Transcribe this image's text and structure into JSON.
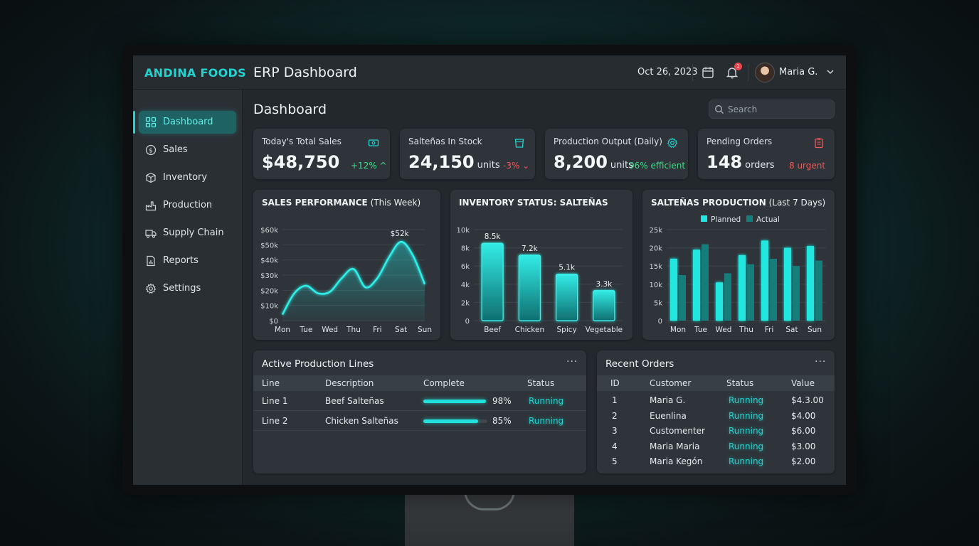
{
  "brand": "ANDINA FOODS",
  "app_title": "ERP Dashboard",
  "topbar": {
    "date": "Oct 26, 2023",
    "notification_count": "1",
    "user_name": "Maria G."
  },
  "sidebar": {
    "items": [
      {
        "label": "Dashboard",
        "icon": "grid-icon",
        "active": true
      },
      {
        "label": "Sales",
        "icon": "dollar-icon"
      },
      {
        "label": "Inventory",
        "icon": "box-icon"
      },
      {
        "label": "Production",
        "icon": "factory-icon"
      },
      {
        "label": "Supply Chain",
        "icon": "truck-icon"
      },
      {
        "label": "Reports",
        "icon": "report-icon"
      },
      {
        "label": "Settings",
        "icon": "gear-icon"
      }
    ]
  },
  "page_title": "Dashboard",
  "search": {
    "placeholder": "Search"
  },
  "kpis": [
    {
      "label": "Today's Total Sales",
      "value": "$48,750",
      "unit": "",
      "change": "+12% ^",
      "icon": "cash-icon"
    },
    {
      "label": "Salteñas In Stock",
      "value": "24,150",
      "unit": "units",
      "change": "-3% ⌄",
      "icon": "stock-icon"
    },
    {
      "label": "Production Output (Daily)",
      "value": "8,200",
      "unit": "units",
      "change": "96% efficient",
      "icon": "gear-icon"
    },
    {
      "label": "Pending Orders",
      "value": "148",
      "unit": "orders",
      "change": "8 urgent",
      "icon": "clipboard-icon"
    }
  ],
  "colors": {
    "accent": "#22d3d0",
    "positive": "#3ee08a",
    "negative": "#ef5a5a",
    "planned": "#22e6e0",
    "actual": "#157e7c"
  },
  "chart_data": [
    {
      "type": "area",
      "title_bold": "SALES PERFORMANCE",
      "title_rest": " (This Week)",
      "categories": [
        "Mon",
        "Tue",
        "Wed",
        "Thu",
        "Fri",
        "Sat",
        "Sun"
      ],
      "x": [
        0,
        0.5,
        1,
        1.5,
        2,
        2.5,
        3,
        3.5,
        4,
        4.5,
        5,
        5.5,
        6
      ],
      "values": [
        4,
        18,
        23,
        18,
        19,
        28,
        34,
        22,
        28,
        42,
        52,
        43,
        24
      ],
      "peak_label": "$52k",
      "ylim": [
        0,
        60
      ],
      "yticks": [
        "$0",
        "$10k",
        "$20k",
        "$30k",
        "$40k",
        "$50k",
        "$60k"
      ],
      "grid": true
    },
    {
      "type": "bar",
      "title_bold": "INVENTORY STATUS: SALTEÑAS",
      "categories": [
        "Beef",
        "Chicken",
        "Spicy",
        "Vegetable"
      ],
      "values": [
        8.5,
        7.2,
        5.1,
        3.3
      ],
      "data_labels": [
        "8.5k",
        "7.2k",
        "5.1k",
        "3.3k"
      ],
      "ylim": [
        0,
        10
      ],
      "yticks": [
        "0",
        "2k",
        "4k",
        "6k",
        "8k",
        "10k"
      ],
      "grid": true
    },
    {
      "type": "bar",
      "title_bold": "SALTEÑAS PRODUCTION",
      "title_rest": " (Last 7 Days)",
      "categories": [
        "Mon",
        "Tue",
        "Wed",
        "Thu",
        "Fri",
        "Sat",
        "Sun"
      ],
      "series": [
        {
          "name": "Planned",
          "values": [
            17,
            19.5,
            10.5,
            18,
            22,
            20,
            20.5
          ]
        },
        {
          "name": "Actual",
          "values": [
            12.5,
            21,
            13,
            15.5,
            17,
            15,
            16.5
          ]
        }
      ],
      "ylim": [
        0,
        25
      ],
      "yticks": [
        "0",
        "5k",
        "10k",
        "15k",
        "20k",
        "25k"
      ],
      "legend": "top-center",
      "grid": true
    }
  ],
  "production_lines": {
    "title": "Active Production Lines",
    "menu": "···",
    "columns": [
      "Line",
      "Description",
      "Complete",
      "Status"
    ],
    "rows": [
      {
        "line": "Line 1",
        "description": "Beef Salteñas",
        "complete": 98,
        "complete_label": "98%",
        "status": "Running"
      },
      {
        "line": "Line 2",
        "description": "Chicken Salteñas",
        "complete": 85,
        "complete_label": "85%",
        "status": "Running"
      }
    ]
  },
  "recent_orders": {
    "title": "Recent Orders",
    "menu": "···",
    "columns": [
      "ID",
      "Customer",
      "Status",
      "Value"
    ],
    "rows": [
      {
        "id": "1",
        "customer": "Maria G.",
        "status": "Running",
        "value": "$4.3.00"
      },
      {
        "id": "2",
        "customer": "Euenlina",
        "status": "Running",
        "value": "$4.00"
      },
      {
        "id": "3",
        "customer": "Customenter",
        "status": "Running",
        "value": "$6.00"
      },
      {
        "id": "4",
        "customer": "Maria Maria",
        "status": "Running",
        "value": "$3.00"
      },
      {
        "id": "5",
        "customer": "Maria Kegón",
        "status": "Running",
        "value": "$2.00"
      }
    ]
  }
}
